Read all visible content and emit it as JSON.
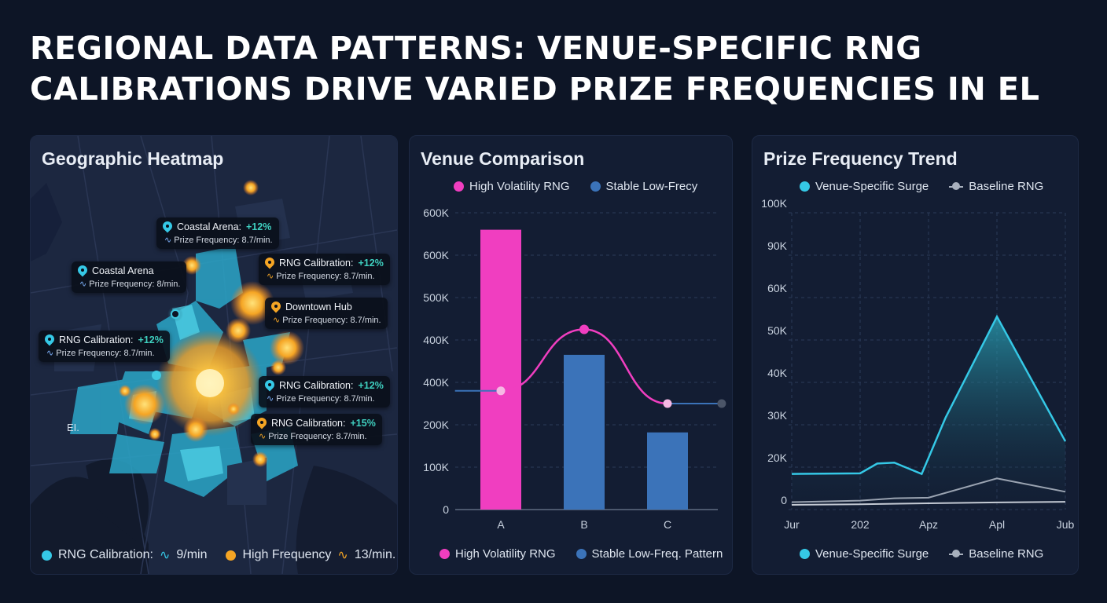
{
  "title": "REGIONAL DATA PATTERNS: VENUE-SPECIFIC RNG CALIBRATIONS DRIVE VARIED PRIZE FREQUENCIES IN EL",
  "colors": {
    "magenta": "#f03ec0",
    "blue": "#3b73b9",
    "cyan": "#35c8e6",
    "orange": "#f5a524",
    "gray": "#a8b0bd"
  },
  "heatmap": {
    "title": "Geographic Heatmap",
    "map_label": "EI.",
    "callouts": [
      {
        "icon": "cyan-pin-icon",
        "name": "Coastal Arena:",
        "change": "+12%",
        "wave_icon": "wave-icon",
        "freq": "Prize Frequency: 8.7/min."
      },
      {
        "icon": "cyan-pin-icon",
        "name": "Coastal Arena",
        "change": "",
        "wave_icon": "wave-icon",
        "freq": "Prize Frequency: 8/min."
      },
      {
        "icon": "orange-pin-icon",
        "name": "RNG Calibration:",
        "change": "+12%",
        "wave_icon": "wave-icon",
        "freq": "Prize Frequency: 8.7/min."
      },
      {
        "icon": "orange-pin-icon",
        "name": "Downtown Hub",
        "change": "",
        "wave_icon": "wave-icon",
        "freq": "Prize Frequency: 8.7/min."
      },
      {
        "icon": "cyan-pin-icon",
        "name": "RNG Calibration:",
        "change": "+12%",
        "wave_icon": "wave-icon",
        "freq": "Prize Frequency: 8.7/min."
      },
      {
        "icon": "cyan-pin-icon",
        "name": "RNG Calibration:",
        "change": "+12%",
        "wave_icon": "wave-icon",
        "freq": "Prize Frequency: 8.7/min."
      },
      {
        "icon": "orange-pin-icon",
        "name": "RNG Calibration:",
        "change": "+15%",
        "wave_icon": "wave-icon",
        "freq": "Prize Frequency: 8.7/min."
      }
    ],
    "legend": {
      "a_label": "RNG Calibration:",
      "a_value": "9/min",
      "b_label": "High Frequency",
      "b_value": "13/min."
    }
  },
  "venue": {
    "title": "Venue Comparison",
    "legend_top": [
      "High Volatility RNG",
      "Stable Low-Frecy"
    ],
    "legend_bottom": [
      "High Volatility RNG",
      "Stable Low-Freq. Pattern"
    ]
  },
  "trend": {
    "title": "Prize Frequency Trend",
    "legend_top": [
      "Venue-Specific Surge",
      "Baseline RNG"
    ],
    "legend_bottom": [
      "Venue-Specific Surge",
      "Baseline RNG"
    ]
  },
  "chart_data": [
    {
      "type": "bar",
      "title": "Venue Comparison",
      "categories": [
        "A",
        "B",
        "C"
      ],
      "y_ticks": [
        "0",
        "100K",
        "200K",
        "400K",
        "400K",
        "500K",
        "600K",
        "600K"
      ],
      "ylim": [
        0,
        700000
      ],
      "series": [
        {
          "name": "High Volatility RNG",
          "kind": "bar",
          "values": [
            660000,
            null,
            null
          ]
        },
        {
          "name": "Stable Low-Frecy",
          "kind": "bar",
          "values": [
            null,
            365000,
            182000
          ]
        },
        {
          "name": "High Volatility RNG",
          "kind": "line",
          "x": [
            -0.55,
            0,
            1,
            2,
            2.65
          ],
          "values": [
            280000,
            280000,
            425000,
            250000,
            250000
          ]
        }
      ],
      "grid": true,
      "legend": "top"
    },
    {
      "type": "line",
      "title": "Prize Frequency Trend",
      "x_ticks": [
        "Jur",
        "202",
        "Apz",
        "Apl",
        "Jub"
      ],
      "y_ticks": [
        "0",
        "20K",
        "30K",
        "40K",
        "50K",
        "60K",
        "90K",
        "100K"
      ],
      "ylim": [
        0,
        100000
      ],
      "series": [
        {
          "name": "Venue-Specific Surge",
          "x": [
            0,
            1,
            1.25,
            1.5,
            1.9,
            2.25,
            3,
            4
          ],
          "values": [
            12000,
            12200,
            15500,
            15800,
            12000,
            31000,
            65000,
            23000
          ]
        },
        {
          "name": "Baseline RNG",
          "x": [
            0,
            1,
            1.5,
            2,
            3,
            4
          ],
          "values": [
            2500,
            3000,
            3800,
            4000,
            10500,
            6000
          ]
        },
        {
          "name": "Baseline RNG",
          "x": [
            0,
            1,
            2,
            3,
            4
          ],
          "values": [
            1600,
            1800,
            2100,
            2400,
            2600
          ]
        }
      ],
      "grid": true,
      "legend": "top"
    }
  ]
}
